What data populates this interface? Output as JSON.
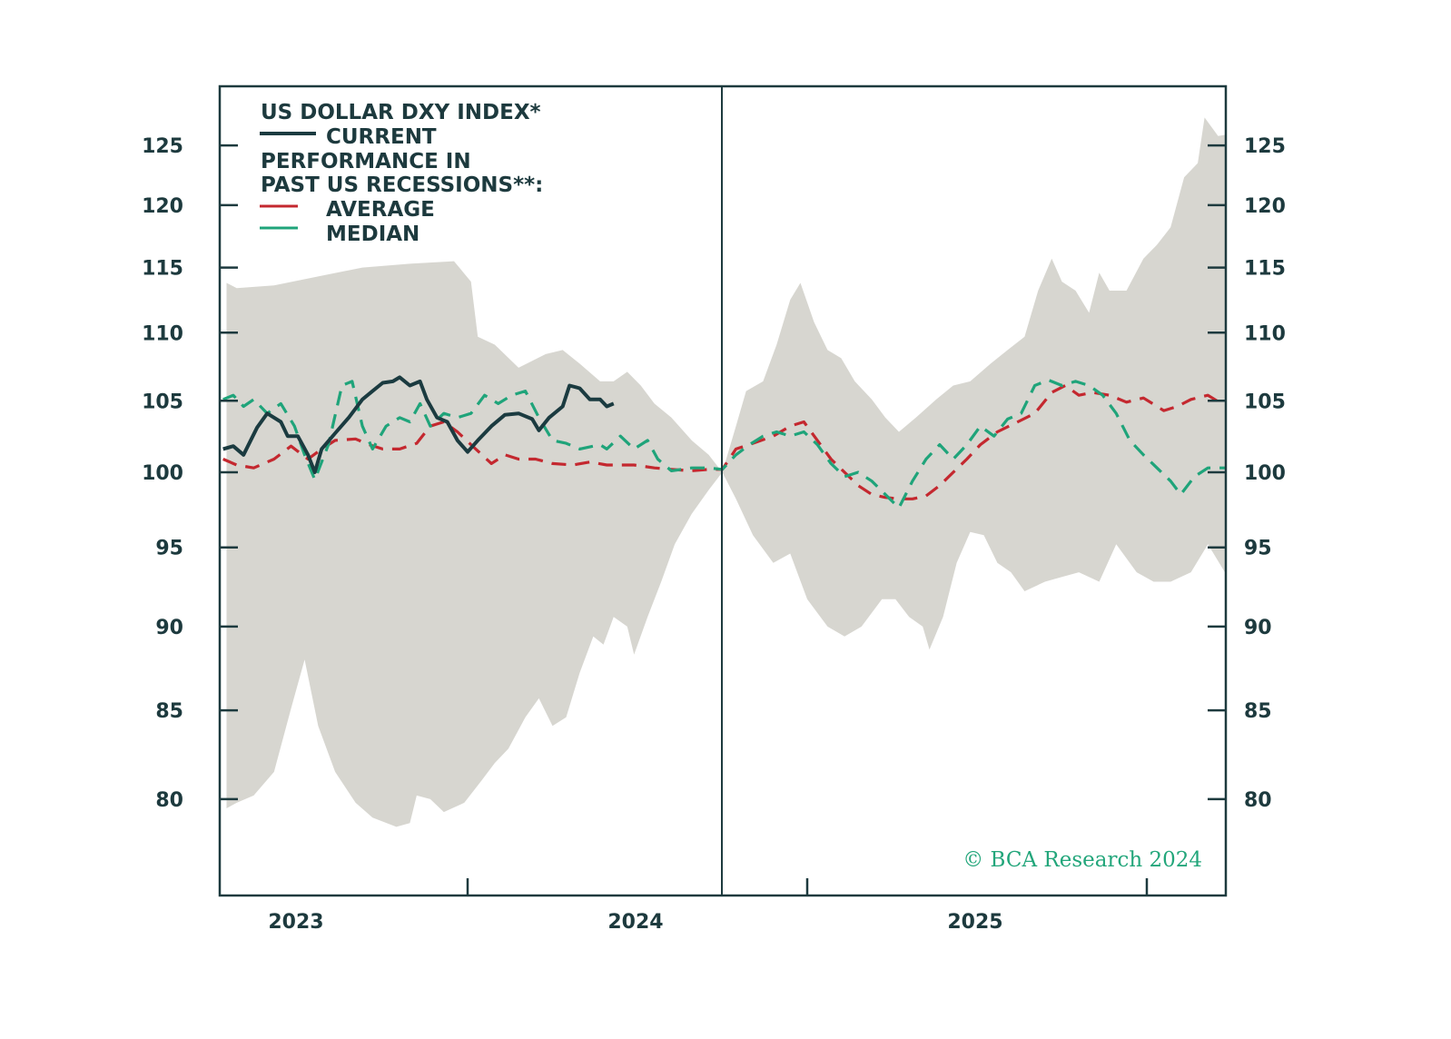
{
  "chart_data": {
    "type": "line",
    "title": "US DOLLAR DXY INDEX*",
    "legend": {
      "current": "CURRENT",
      "group_line1": "PERFORMANCE IN",
      "group_line2": "PAST US RECESSIONS**:",
      "average": "AVERAGE",
      "median": "MEDIAN",
      "placement": "top-left"
    },
    "y_scale": "log",
    "ylim": [
      76,
      130
    ],
    "y_ticks": [
      "125",
      "120",
      "115",
      "110",
      "105",
      "100",
      "95",
      "90",
      "85",
      "80"
    ],
    "y_tick_values": [
      125,
      120,
      115,
      110,
      105,
      100,
      95,
      90,
      85,
      80
    ],
    "xlim": [
      2023.27,
      2026.23
    ],
    "x_tick_positions": [
      2024,
      2025,
      2026
    ],
    "x_labels": [
      "2023",
      "2024",
      "2025"
    ],
    "x_label_positions": [
      2023.5,
      2024.5,
      2025.5
    ],
    "reference_line_x": 2024.75,
    "watermark": "© BCA Research 2024",
    "colors": {
      "current": "#1b3b40",
      "average": "#c4282f",
      "median": "#1fa47a",
      "band": "#d7d6d0",
      "axis": "#1d3a3e"
    },
    "series": [
      {
        "name": "CURRENT",
        "x": [
          2023.28,
          2023.31,
          2023.34,
          2023.38,
          2023.41,
          2023.45,
          2023.47,
          2023.5,
          2023.53,
          2023.55,
          2023.57,
          2023.61,
          2023.65,
          2023.69,
          2023.72,
          2023.75,
          2023.78,
          2023.8,
          2023.83,
          2023.86,
          2023.88,
          2023.91,
          2023.94,
          2023.97,
          2024.0,
          2024.03,
          2024.07,
          2024.11,
          2024.15,
          2024.19,
          2024.21,
          2024.24,
          2024.28,
          2024.3,
          2024.33,
          2024.36,
          2024.39,
          2024.41,
          2024.43
        ],
        "values": [
          101.6,
          101.8,
          101.2,
          103.1,
          104.1,
          103.5,
          102.5,
          102.5,
          101.2,
          100.0,
          101.6,
          102.7,
          103.8,
          105.1,
          105.7,
          106.3,
          106.4,
          106.7,
          106.1,
          106.4,
          105.1,
          103.8,
          103.5,
          102.2,
          101.4,
          102.2,
          103.2,
          104.0,
          104.1,
          103.7,
          102.9,
          103.8,
          104.6,
          106.1,
          105.9,
          105.1,
          105.1,
          104.6,
          104.8
        ]
      },
      {
        "name": "AVERAGE",
        "x": [
          2023.28,
          2023.32,
          2023.37,
          2023.43,
          2023.48,
          2023.53,
          2023.57,
          2023.61,
          2023.67,
          2023.71,
          2023.75,
          2023.8,
          2023.85,
          2023.89,
          2023.93,
          2023.97,
          2024.01,
          2024.07,
          2024.11,
          2024.15,
          2024.2,
          2024.25,
          2024.31,
          2024.36,
          2024.41,
          2024.49,
          2024.55,
          2024.6,
          2024.66,
          2024.71,
          2024.75,
          2024.79,
          2024.84,
          2024.9,
          2024.95,
          2024.99,
          2025.03,
          2025.07,
          2025.11,
          2025.15,
          2025.19,
          2025.23,
          2025.27,
          2025.31,
          2025.35,
          2025.39,
          2025.43,
          2025.47,
          2025.51,
          2025.56,
          2025.62,
          2025.67,
          2025.72,
          2025.76,
          2025.8,
          2025.84,
          2025.89,
          2025.94,
          2025.99,
          2026.05,
          2026.09,
          2026.13,
          2026.18,
          2026.22
        ],
        "values": [
          100.9,
          100.5,
          100.3,
          100.9,
          101.8,
          100.9,
          101.6,
          102.2,
          102.3,
          101.9,
          101.6,
          101.6,
          102.0,
          103.2,
          103.5,
          102.8,
          101.9,
          100.6,
          101.2,
          100.9,
          100.9,
          100.6,
          100.5,
          100.7,
          100.5,
          100.5,
          100.3,
          100.2,
          100.1,
          100.2,
          100.2,
          101.6,
          102.0,
          102.5,
          103.2,
          103.5,
          102.2,
          100.9,
          100.0,
          99.1,
          98.5,
          98.3,
          98.2,
          98.2,
          98.4,
          99.1,
          100.0,
          100.9,
          101.9,
          102.8,
          103.5,
          104.1,
          105.6,
          106.1,
          105.4,
          105.6,
          105.4,
          104.9,
          105.2,
          104.3,
          104.6,
          105.1,
          105.4,
          104.8
        ]
      },
      {
        "name": "MEDIAN",
        "x": [
          2023.28,
          2023.31,
          2023.34,
          2023.37,
          2023.41,
          2023.45,
          2023.49,
          2023.52,
          2023.55,
          2023.59,
          2023.63,
          2023.66,
          2023.69,
          2023.72,
          2023.76,
          2023.8,
          2023.83,
          2023.86,
          2023.89,
          2023.93,
          2023.97,
          2024.01,
          2024.05,
          2024.09,
          2024.13,
          2024.17,
          2024.21,
          2024.25,
          2024.29,
          2024.33,
          2024.39,
          2024.41,
          2024.45,
          2024.49,
          2024.53,
          2024.56,
          2024.6,
          2024.66,
          2024.71,
          2024.75,
          2024.79,
          2024.83,
          2024.87,
          2024.91,
          2024.95,
          2024.99,
          2025.03,
          2025.07,
          2025.11,
          2025.15,
          2025.19,
          2025.23,
          2025.27,
          2025.31,
          2025.35,
          2025.39,
          2025.43,
          2025.47,
          2025.51,
          2025.55,
          2025.59,
          2025.63,
          2025.67,
          2025.71,
          2025.75,
          2025.79,
          2025.83,
          2025.87,
          2025.91,
          2025.95,
          2025.99,
          2026.03,
          2026.07,
          2026.1,
          2026.14,
          2026.18,
          2026.23
        ],
        "values": [
          105.1,
          105.4,
          104.6,
          105.1,
          104.1,
          104.8,
          103.2,
          101.2,
          99.5,
          101.9,
          106.1,
          106.4,
          103.2,
          101.6,
          103.2,
          103.8,
          103.5,
          104.8,
          103.2,
          104.1,
          103.8,
          104.1,
          105.4,
          104.8,
          105.4,
          105.7,
          103.8,
          102.2,
          102.0,
          101.6,
          101.9,
          101.6,
          102.5,
          101.6,
          102.2,
          100.9,
          100.1,
          100.3,
          100.3,
          100.2,
          101.2,
          101.9,
          102.5,
          102.8,
          102.5,
          102.8,
          101.9,
          100.6,
          99.7,
          100.0,
          99.4,
          98.5,
          97.6,
          99.4,
          100.9,
          101.9,
          100.9,
          101.9,
          103.2,
          102.5,
          103.7,
          104.1,
          106.1,
          106.5,
          106.1,
          106.4,
          106.1,
          105.4,
          104.1,
          102.2,
          101.2,
          100.3,
          99.4,
          98.5,
          99.7,
          100.3,
          100.3
        ]
      },
      {
        "name": "RANGE_UPPER",
        "x": [
          2023.29,
          2023.32,
          2023.43,
          2023.56,
          2023.69,
          2023.83,
          2023.96,
          2024.01,
          2024.03,
          2024.08,
          2024.15,
          2024.23,
          2024.28,
          2024.33,
          2024.39,
          2024.43,
          2024.47,
          2024.51,
          2024.55,
          2024.6,
          2024.66,
          2024.71,
          2024.75,
          2024.79,
          2024.82,
          2024.87,
          2024.91,
          2024.95,
          2024.98,
          2025.02,
          2025.06,
          2025.1,
          2025.14,
          2025.19,
          2025.23,
          2025.27,
          2025.32,
          2025.38,
          2025.43,
          2025.48,
          2025.54,
          2025.59,
          2025.64,
          2025.68,
          2025.72,
          2025.75,
          2025.79,
          2025.83,
          2025.86,
          2025.89,
          2025.94,
          2025.99,
          2026.03,
          2026.07,
          2026.11,
          2026.15,
          2026.17,
          2026.21,
          2026.23
        ],
        "values": [
          113.8,
          113.4,
          113.6,
          114.3,
          115.0,
          115.3,
          115.5,
          113.9,
          109.7,
          109.1,
          107.4,
          108.4,
          108.7,
          107.7,
          106.4,
          106.4,
          107.1,
          106.1,
          104.8,
          103.8,
          102.2,
          101.2,
          100.0,
          103.2,
          105.7,
          106.4,
          109.1,
          112.5,
          113.8,
          110.8,
          108.7,
          108.1,
          106.4,
          105.1,
          103.8,
          102.8,
          103.8,
          105.1,
          106.1,
          106.4,
          107.7,
          108.7,
          109.7,
          113.2,
          115.7,
          113.9,
          113.2,
          111.5,
          114.6,
          113.2,
          113.2,
          115.7,
          116.8,
          118.2,
          122.3,
          123.5,
          127.4,
          125.8,
          125.9
        ]
      },
      {
        "name": "RANGE_LOWER",
        "x": [
          2023.29,
          2023.32,
          2023.37,
          2023.43,
          2023.48,
          2023.52,
          2023.56,
          2023.61,
          2023.67,
          2023.72,
          2023.79,
          2023.83,
          2023.85,
          2023.89,
          2023.93,
          2023.99,
          2024.04,
          2024.08,
          2024.12,
          2024.17,
          2024.21,
          2024.25,
          2024.29,
          2024.33,
          2024.37,
          2024.4,
          2024.43,
          2024.47,
          2024.49,
          2024.53,
          2024.57,
          2024.61,
          2024.66,
          2024.71,
          2024.75,
          2024.79,
          2024.84,
          2024.9,
          2024.95,
          2025.0,
          2025.06,
          2025.11,
          2025.16,
          2025.22,
          2025.26,
          2025.3,
          2025.34,
          2025.36,
          2025.4,
          2025.44,
          2025.48,
          2025.52,
          2025.56,
          2025.6,
          2025.64,
          2025.7,
          2025.75,
          2025.8,
          2025.86,
          2025.91,
          2025.97,
          2026.02,
          2026.07,
          2026.13,
          2026.18,
          2026.23
        ],
        "values": [
          79.5,
          79.8,
          80.2,
          81.5,
          85.1,
          88.0,
          84.1,
          81.5,
          79.8,
          79.0,
          78.5,
          78.7,
          80.2,
          80.0,
          79.3,
          79.8,
          81.0,
          82.0,
          82.8,
          84.6,
          85.7,
          84.1,
          84.6,
          87.2,
          89.4,
          88.9,
          90.6,
          90.0,
          88.3,
          90.6,
          92.8,
          95.2,
          97.2,
          98.8,
          100.0,
          98.2,
          95.8,
          94.0,
          94.6,
          91.7,
          90.0,
          89.4,
          90.0,
          91.7,
          91.7,
          90.6,
          90.0,
          88.6,
          90.6,
          94.0,
          96.0,
          95.8,
          94.0,
          93.4,
          92.2,
          92.8,
          93.1,
          93.4,
          92.8,
          95.2,
          93.4,
          92.8,
          92.8,
          93.4,
          95.2,
          93.4
        ]
      }
    ]
  }
}
